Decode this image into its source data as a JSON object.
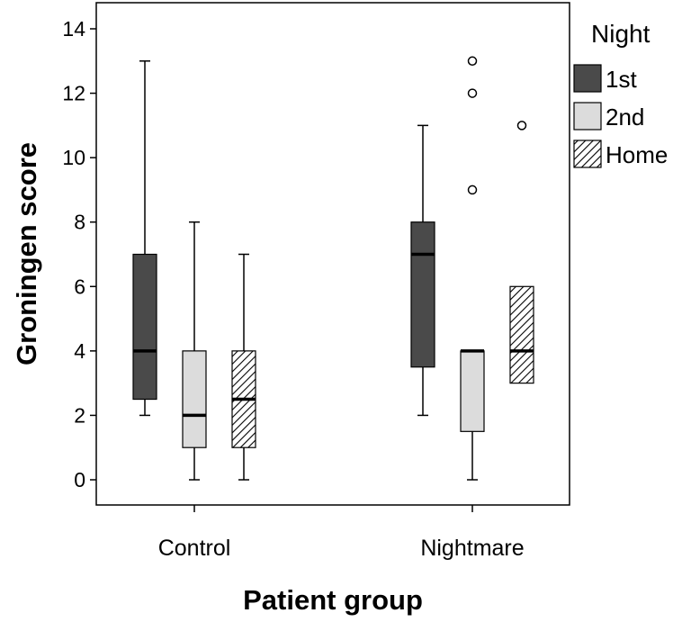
{
  "chart_data": {
    "type": "boxplot",
    "title": "",
    "xlabel": "Patient group",
    "ylabel": "Groningen score",
    "ylim": [
      -0.8,
      15
    ],
    "yticks": [
      0,
      2,
      4,
      6,
      8,
      10,
      12,
      14
    ],
    "grid": false,
    "legend": {
      "title": "Night",
      "position": "right"
    },
    "categories": [
      "Control",
      "Nightmare"
    ],
    "series": [
      {
        "name": "1st",
        "fill": "#4a4a4a",
        "pattern": "solid",
        "boxes": [
          {
            "category": "Control",
            "whisker_low": 2,
            "q1": 2.5,
            "median": 4,
            "q3": 7,
            "whisker_high": 13,
            "outliers": []
          },
          {
            "category": "Nightmare",
            "whisker_low": 2,
            "q1": 3.5,
            "median": 7,
            "q3": 8,
            "whisker_high": 11,
            "outliers": []
          }
        ]
      },
      {
        "name": "2nd",
        "fill": "#dcdcdc",
        "pattern": "solid",
        "boxes": [
          {
            "category": "Control",
            "whisker_low": 0,
            "q1": 1,
            "median": 2,
            "q3": 4,
            "whisker_high": 8,
            "outliers": []
          },
          {
            "category": "Nightmare",
            "whisker_low": 0,
            "q1": 1.5,
            "median": 4,
            "q3": 4,
            "whisker_high": 4,
            "outliers": [
              9,
              12,
              13
            ]
          }
        ]
      },
      {
        "name": "Home",
        "fill": "#ffffff",
        "pattern": "hatch",
        "boxes": [
          {
            "category": "Control",
            "whisker_low": 0,
            "q1": 1,
            "median": 2.5,
            "q3": 4,
            "whisker_high": 7,
            "outliers": []
          },
          {
            "category": "Nightmare",
            "whisker_low": 3,
            "q1": 3,
            "median": 4,
            "q3": 6,
            "whisker_high": 6,
            "outliers": [
              11
            ]
          }
        ]
      }
    ]
  }
}
